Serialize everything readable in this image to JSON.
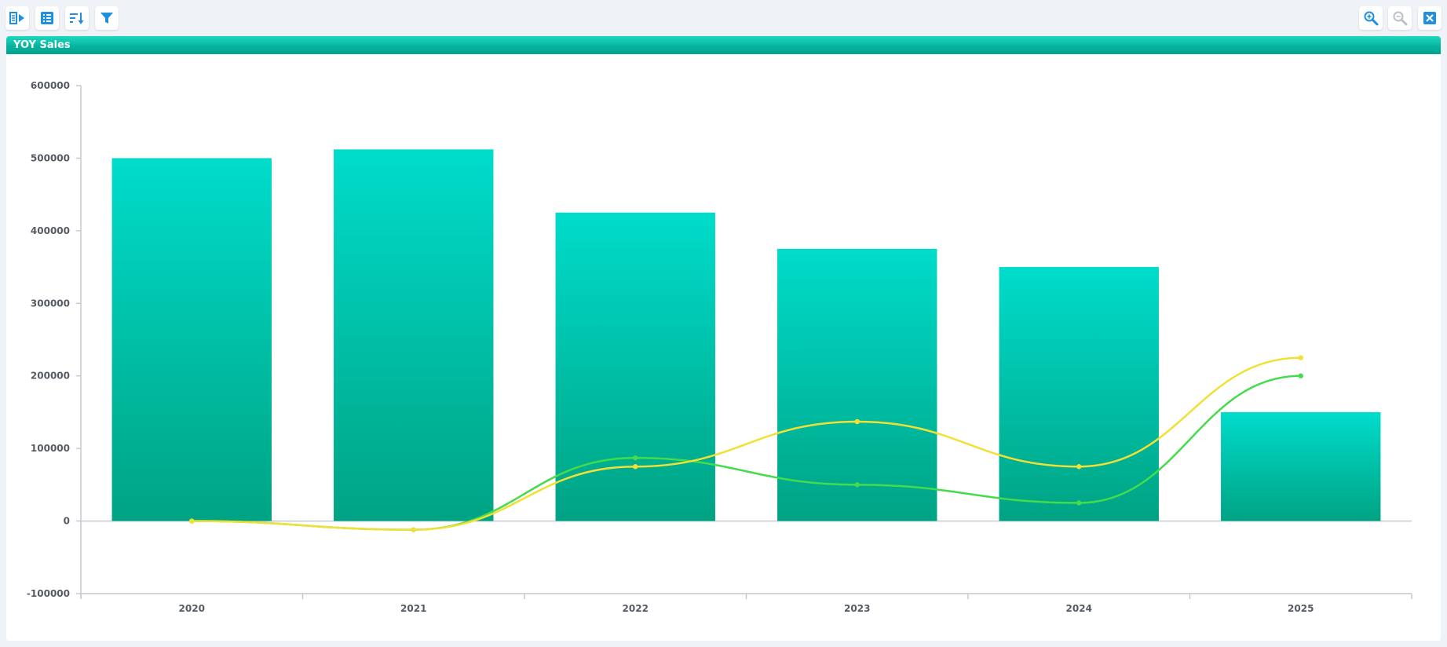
{
  "toolbar": {
    "left_buttons": [
      {
        "icon": "toggle-panel-icon",
        "name": "toggle-panel-button"
      },
      {
        "icon": "list-icon",
        "name": "list-view-button"
      },
      {
        "icon": "sort-icon",
        "name": "sort-button"
      },
      {
        "icon": "filter-icon",
        "name": "filter-button"
      }
    ],
    "right_buttons": [
      {
        "icon": "zoom-in-icon",
        "name": "zoom-in-button",
        "enabled": true
      },
      {
        "icon": "zoom-out-icon",
        "name": "zoom-out-button",
        "enabled": false
      },
      {
        "icon": "close-icon",
        "name": "close-button",
        "enabled": true
      }
    ],
    "icon_color": "#1f8fde",
    "disabled_icon_color": "#b8c0c8"
  },
  "panel": {
    "title": "YOY Sales",
    "header_color": "#00b09b"
  },
  "chart_data": {
    "type": "bar",
    "title": "",
    "xlabel": "",
    "ylabel": "",
    "categories": [
      "2020",
      "2021",
      "2022",
      "2023",
      "2024",
      "2025"
    ],
    "ylim": [
      -100000,
      600000
    ],
    "yticks": [
      -100000,
      0,
      100000,
      200000,
      300000,
      400000,
      500000,
      600000
    ],
    "grid": false,
    "legend": "none",
    "series": [
      {
        "type": "bar",
        "values": [
          500000,
          512000,
          425000,
          375000,
          350000,
          150000
        ],
        "color_top": "#00dccb",
        "color_bottom": "#00a383"
      },
      {
        "type": "line",
        "values": [
          0,
          -12000,
          87000,
          50000,
          25000,
          200000
        ],
        "color": "#44db4c"
      },
      {
        "type": "line",
        "values": [
          0,
          -12000,
          75000,
          137000,
          75000,
          225000
        ],
        "color": "#f1e036"
      }
    ]
  }
}
